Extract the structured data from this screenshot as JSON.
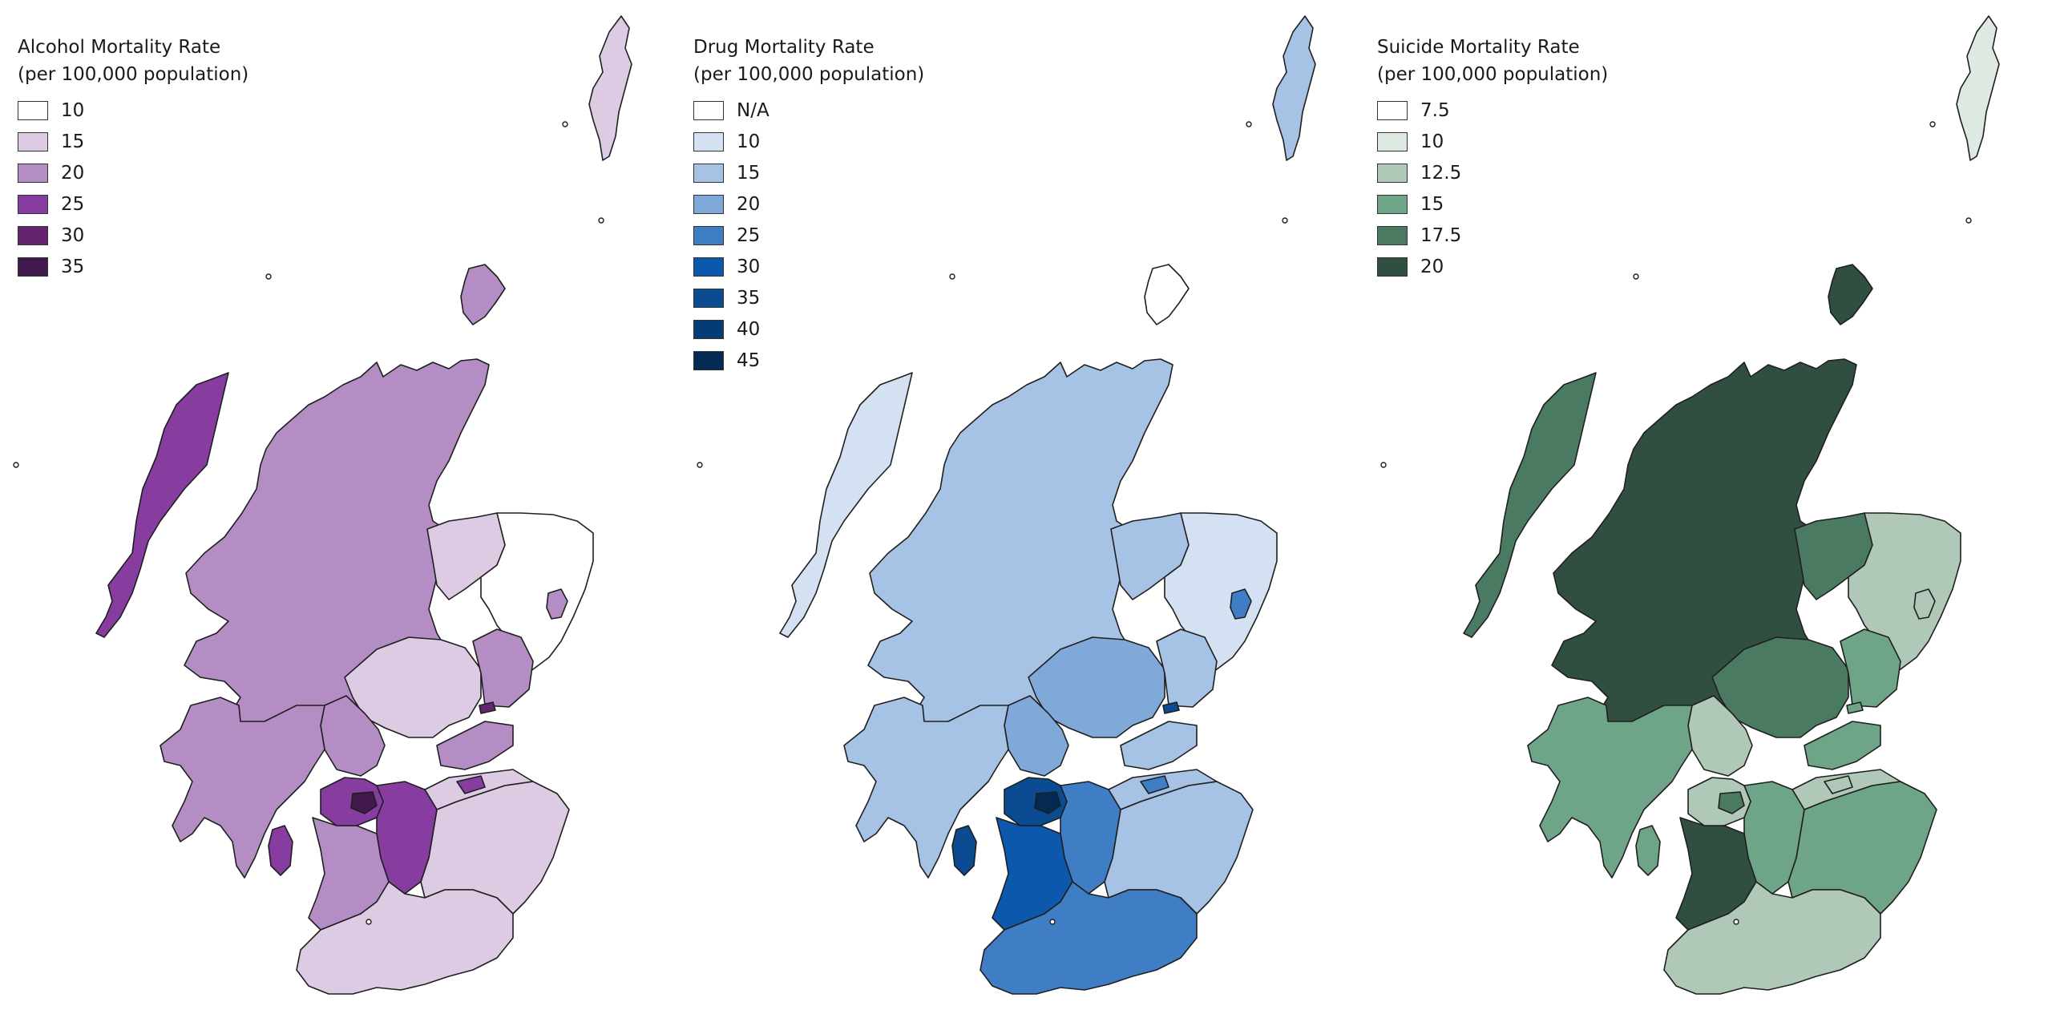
{
  "panels": [
    {
      "id": "alcohol",
      "title_line1": "Alcohol Mortality Rate",
      "title_line2": "(per 100,000 population)",
      "legend": [
        {
          "label": "10",
          "color": "#ffffff"
        },
        {
          "label": "15",
          "color": "#dccbe3"
        },
        {
          "label": "20",
          "color": "#b48dc4"
        },
        {
          "label": "25",
          "color": "#873d9f"
        },
        {
          "label": "30",
          "color": "#65246f"
        },
        {
          "label": "35",
          "color": "#42194e"
        }
      ],
      "region_classes": {
        "highland": 2,
        "moray": 1,
        "aberdeenshire": 0,
        "aberdeen": 2,
        "perth": 1,
        "angus": 2,
        "dundee": 4,
        "fife": 2,
        "stirling": 2,
        "argyll": 2,
        "glasgow_area": 3,
        "glasgow_core": 5,
        "lanark": 3,
        "ayrshire": 2,
        "dumfries": 1,
        "borders": 1,
        "lothian": 1,
        "edinburgh": 3,
        "western_isles": 3,
        "orkney": 2,
        "shetland": 1,
        "arran": 3
      }
    },
    {
      "id": "drug",
      "title_line1": "Drug Mortality Rate",
      "title_line2": "(per 100,000 population)",
      "legend": [
        {
          "label": "N/A",
          "color": "#ffffff"
        },
        {
          "label": "10",
          "color": "#d3e1f2"
        },
        {
          "label": "15",
          "color": "#a6c2e4"
        },
        {
          "label": "20",
          "color": "#80a8d9"
        },
        {
          "label": "25",
          "color": "#3f7ec5"
        },
        {
          "label": "30",
          "color": "#0b58ac"
        },
        {
          "label": "35",
          "color": "#0a4b91"
        },
        {
          "label": "40",
          "color": "#063c76"
        },
        {
          "label": "45",
          "color": "#042952"
        }
      ],
      "region_classes": {
        "highland": 2,
        "moray": 2,
        "aberdeenshire": 1,
        "aberdeen": 4,
        "perth": 3,
        "angus": 2,
        "dundee": 6,
        "fife": 2,
        "stirling": 3,
        "argyll": 2,
        "glasgow_area": 6,
        "glasgow_core": 8,
        "lanark": 4,
        "ayrshire": 5,
        "dumfries": 4,
        "borders": 2,
        "lothian": 2,
        "edinburgh": 4,
        "western_isles": 1,
        "orkney": 0,
        "shetland": 2,
        "arran": 6
      }
    },
    {
      "id": "suicide",
      "title_line1": "Suicide Mortality Rate",
      "title_line2": "(per 100,000 population)",
      "legend": [
        {
          "label": "7.5",
          "color": "#ffffff"
        },
        {
          "label": "10",
          "color": "#dde9e1"
        },
        {
          "label": "12.5",
          "color": "#afc8b7"
        },
        {
          "label": "15",
          "color": "#6ea588"
        },
        {
          "label": "17.5",
          "color": "#4a7a61"
        },
        {
          "label": "20",
          "color": "#304f41"
        }
      ],
      "region_classes": {
        "highland": 5,
        "moray": 4,
        "aberdeenshire": 2,
        "aberdeen": 2,
        "perth": 4,
        "angus": 3,
        "dundee": 3,
        "fife": 3,
        "stirling": 2,
        "argyll": 3,
        "glasgow_area": 2,
        "glasgow_core": 4,
        "lanark": 3,
        "ayrshire": 5,
        "dumfries": 2,
        "borders": 3,
        "lothian": 2,
        "edinburgh": 2,
        "western_isles": 4,
        "orkney": 5,
        "shetland": 1,
        "arran": 3
      }
    }
  ]
}
